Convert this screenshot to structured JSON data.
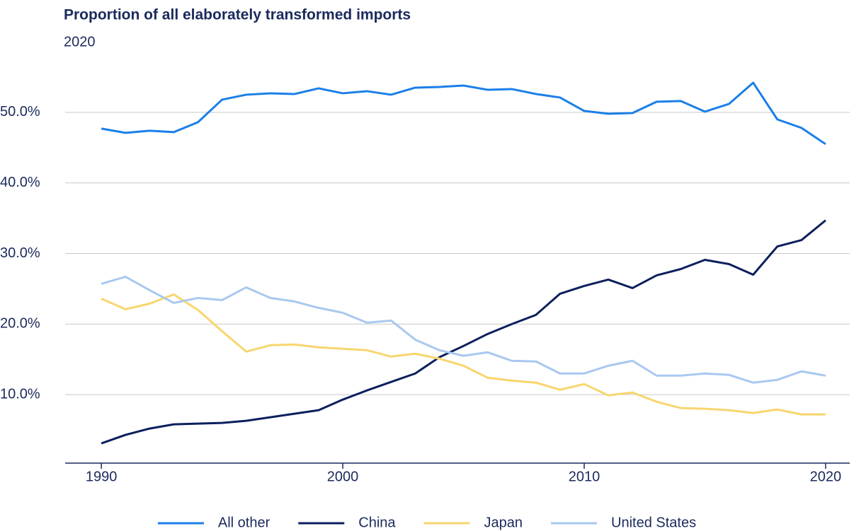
{
  "chart_data": {
    "type": "line",
    "title": "Proportion of all elaborately transformed imports",
    "subtitle": "2020",
    "x": [
      1990,
      1991,
      1992,
      1993,
      1994,
      1995,
      1996,
      1997,
      1998,
      1999,
      2000,
      2001,
      2002,
      2003,
      2004,
      2005,
      2006,
      2007,
      2008,
      2009,
      2010,
      2011,
      2012,
      2013,
      2014,
      2015,
      2016,
      2017,
      2018,
      2019,
      2020
    ],
    "series": [
      {
        "name": "All other",
        "color": "#1a7fe8",
        "values": [
          47.7,
          47.1,
          47.4,
          47.2,
          48.6,
          51.8,
          52.5,
          52.7,
          52.6,
          53.4,
          52.7,
          53.0,
          52.5,
          53.5,
          53.6,
          53.8,
          53.2,
          53.3,
          52.6,
          52.1,
          50.2,
          49.8,
          49.9,
          51.5,
          51.6,
          50.1,
          51.2,
          54.2,
          49.0,
          47.8,
          45.5
        ]
      },
      {
        "name": "China",
        "color": "#0b1f5c",
        "values": [
          3.1,
          4.3,
          5.2,
          5.8,
          5.9,
          6.0,
          6.3,
          6.8,
          7.3,
          7.8,
          9.3,
          10.6,
          11.8,
          13.0,
          15.3,
          16.9,
          18.6,
          20.0,
          21.3,
          24.3,
          25.4,
          26.3,
          25.1,
          26.9,
          27.8,
          29.1,
          28.5,
          27.0,
          31.0,
          31.9,
          34.7
        ]
      },
      {
        "name": "Japan",
        "color": "#f8d66e",
        "values": [
          23.6,
          22.1,
          22.9,
          24.2,
          22.0,
          19.0,
          16.1,
          17.0,
          17.1,
          16.7,
          16.5,
          16.3,
          15.4,
          15.8,
          15.1,
          14.1,
          12.4,
          12.0,
          11.7,
          10.7,
          11.5,
          9.9,
          10.3,
          9.0,
          8.1,
          8.0,
          7.8,
          7.4,
          7.9,
          7.2,
          7.2
        ]
      },
      {
        "name": "United States",
        "color": "#a9c8f0",
        "values": [
          25.7,
          26.7,
          24.8,
          23.0,
          23.7,
          23.4,
          25.2,
          23.7,
          23.2,
          22.3,
          21.6,
          20.2,
          20.5,
          17.8,
          16.3,
          15.5,
          16.0,
          14.8,
          14.7,
          13.0,
          13.0,
          14.1,
          14.8,
          12.7,
          12.7,
          13.0,
          12.8,
          11.7,
          12.1,
          13.3,
          12.7
        ]
      }
    ],
    "xlim": [
      1988.5,
      2021
    ],
    "xticks": [
      1990,
      2000,
      2010,
      2020
    ],
    "ylim": [
      0.3,
      56
    ],
    "yticks": [
      {
        "value": 10,
        "label": "10.0%"
      },
      {
        "value": 20,
        "label": "20.0%"
      },
      {
        "value": 30,
        "label": "30.0%"
      },
      {
        "value": 40,
        "label": "40.0%"
      },
      {
        "value": 50,
        "label": "50.0%"
      }
    ],
    "grid": true,
    "legend": "bottom"
  }
}
